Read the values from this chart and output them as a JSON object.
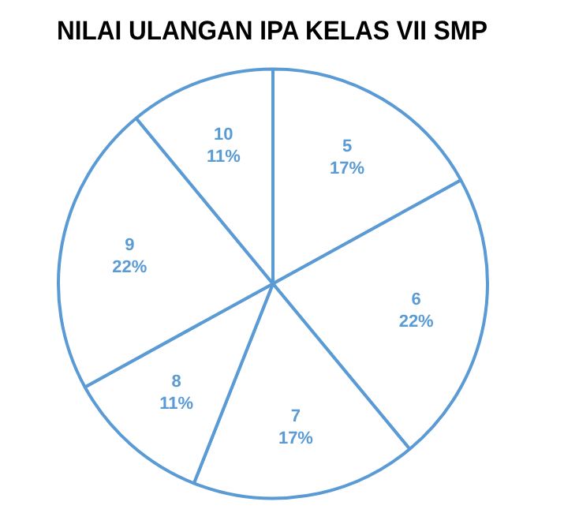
{
  "chart_data": {
    "type": "pie",
    "title": "NILAI ULANGAN IPA KELAS VII SMP",
    "categories": [
      "5",
      "6",
      "7",
      "8",
      "9",
      "10"
    ],
    "values": [
      17,
      22,
      17,
      11,
      22,
      11
    ],
    "value_labels": [
      "17%",
      "22%",
      "17%",
      "11%",
      "22%",
      "11%"
    ],
    "colors": [
      "#5b9bd5",
      "#5b9bd5",
      "#5b9bd5",
      "#5b9bd5",
      "#5b9bd5",
      "#5b9bd5"
    ],
    "legend": false
  }
}
